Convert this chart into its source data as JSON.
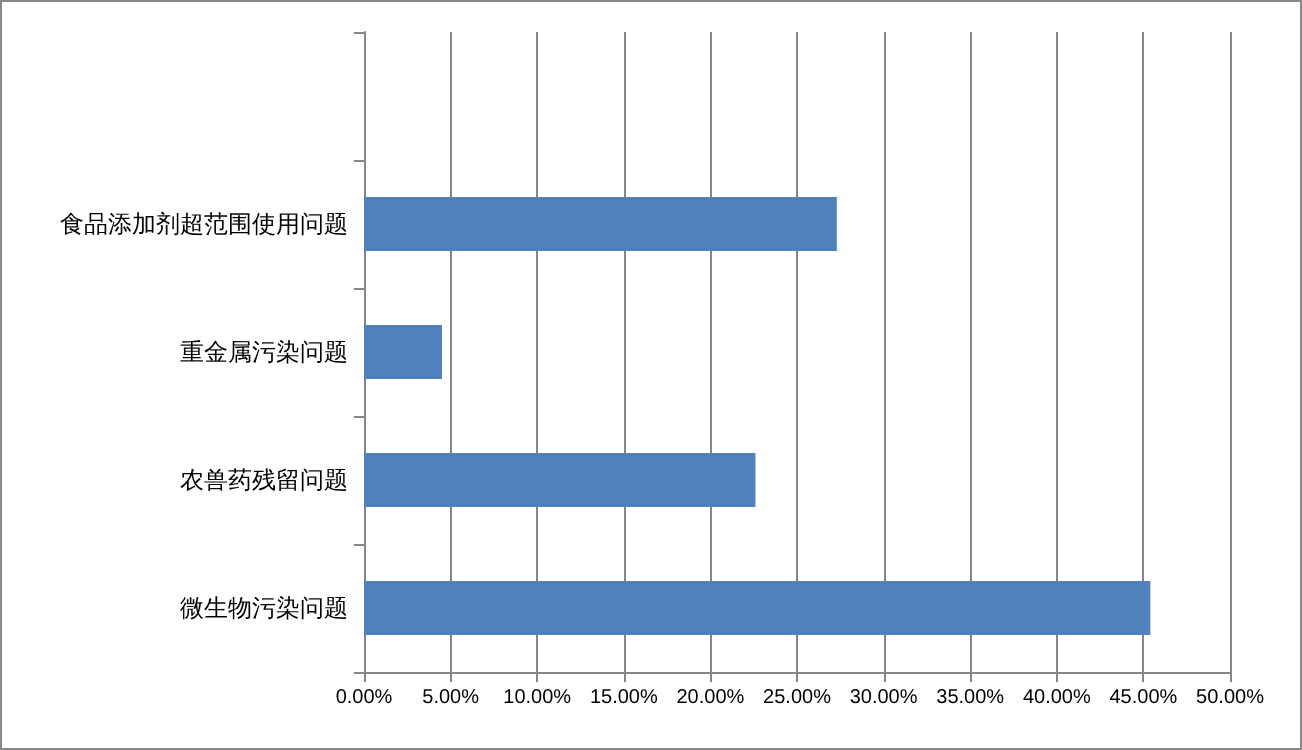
{
  "chart_data": {
    "type": "bar",
    "orientation": "horizontal",
    "categories": [
      null,
      "食品添加剂超范围使用问题",
      "重金属污染问题",
      "农兽药残留问题",
      "微生物污染问题"
    ],
    "values": [
      null,
      27.3,
      4.5,
      22.6,
      45.4
    ],
    "color": "#4f81bd",
    "xlim": [
      0,
      50
    ],
    "xticks": [
      {
        "value": 0,
        "label": "0.00%"
      },
      {
        "value": 5,
        "label": "5.00%"
      },
      {
        "value": 10,
        "label": "10.00%"
      },
      {
        "value": 15,
        "label": "15.00%"
      },
      {
        "value": 20,
        "label": "20.00%"
      },
      {
        "value": 25,
        "label": "25.00%"
      },
      {
        "value": 30,
        "label": "30.00%"
      },
      {
        "value": 35,
        "label": "35.00%"
      },
      {
        "value": 40,
        "label": "40.00%"
      },
      {
        "value": 45,
        "label": "45.00%"
      },
      {
        "value": 50,
        "label": "50.00%"
      }
    ],
    "grid": "x"
  }
}
